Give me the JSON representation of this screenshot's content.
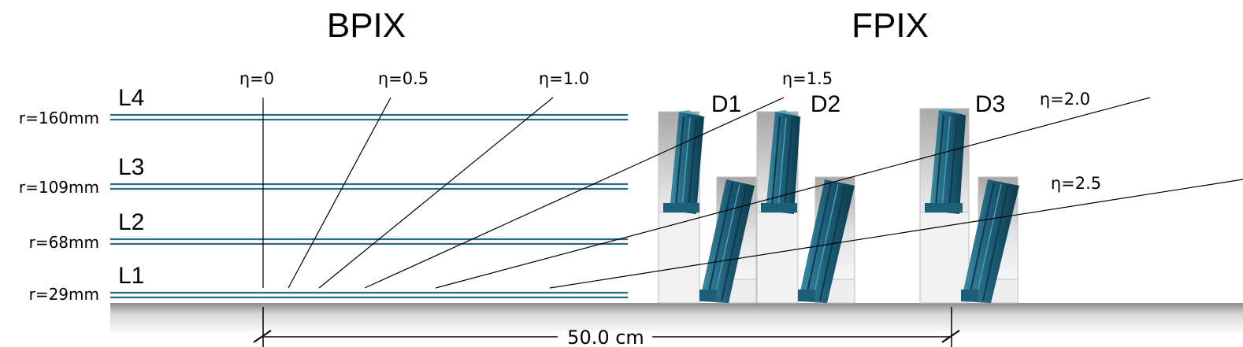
{
  "titles": {
    "bpix": "BPIX",
    "fpix": "FPIX"
  },
  "layers": [
    {
      "label": "L4",
      "radius": "r=160mm"
    },
    {
      "label": "L3",
      "radius": "r=109mm"
    },
    {
      "label": "L2",
      "radius": "r=68mm"
    },
    {
      "label": "L1",
      "radius": "r=29mm"
    }
  ],
  "eta_labels": [
    "η=0",
    "η=0.5",
    "η=1.0",
    "η=1.5",
    "η=2.0",
    "η=2.5"
  ],
  "disks": [
    "D1",
    "D2",
    "D3"
  ],
  "scale": {
    "label": "50.0 cm"
  },
  "colors": {
    "layer_line": "#2a6a82",
    "module": "#1d5e78",
    "module_dark": "#0f3f52",
    "frame": "#bbbbbb"
  }
}
